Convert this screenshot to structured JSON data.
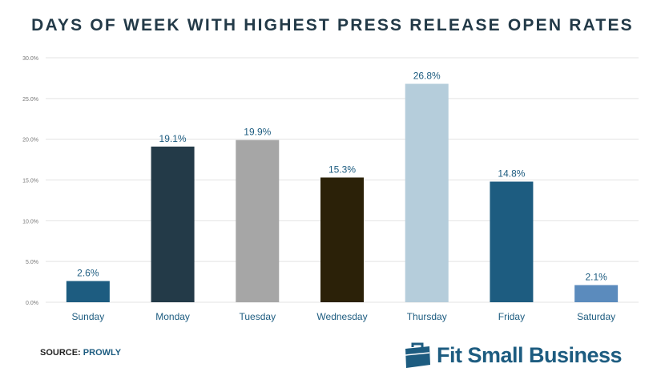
{
  "chart_data": {
    "type": "bar",
    "title": "DAYS OF WEEK WITH HIGHEST PRESS RELEASE OPEN RATES",
    "categories": [
      "Sunday",
      "Monday",
      "Tuesday",
      "Wednesday",
      "Thursday",
      "Friday",
      "Saturday"
    ],
    "values": [
      2.6,
      19.1,
      19.9,
      15.3,
      26.8,
      14.8,
      2.1
    ],
    "data_labels": [
      "2.6%",
      "19.1%",
      "19.9%",
      "15.3%",
      "26.8%",
      "14.8%",
      "2.1%"
    ],
    "colors": [
      "#1d5c80",
      "#233a48",
      "#a6a6a6",
      "#2b2108",
      "#b5cddb",
      "#1d5c80",
      "#5b8bbd"
    ],
    "ylim": [
      0,
      30
    ],
    "yticks": [
      "0.0%",
      "5.0%",
      "10.0%",
      "15.0%",
      "20.0%",
      "25.0%",
      "30.0%"
    ],
    "grid": true,
    "xlabel": "",
    "ylabel": ""
  },
  "footer": {
    "source_label": "SOURCE:",
    "source_value": "PROWLY"
  },
  "logo": {
    "text": "Fit Small Business",
    "icon": "briefcase-icon"
  }
}
